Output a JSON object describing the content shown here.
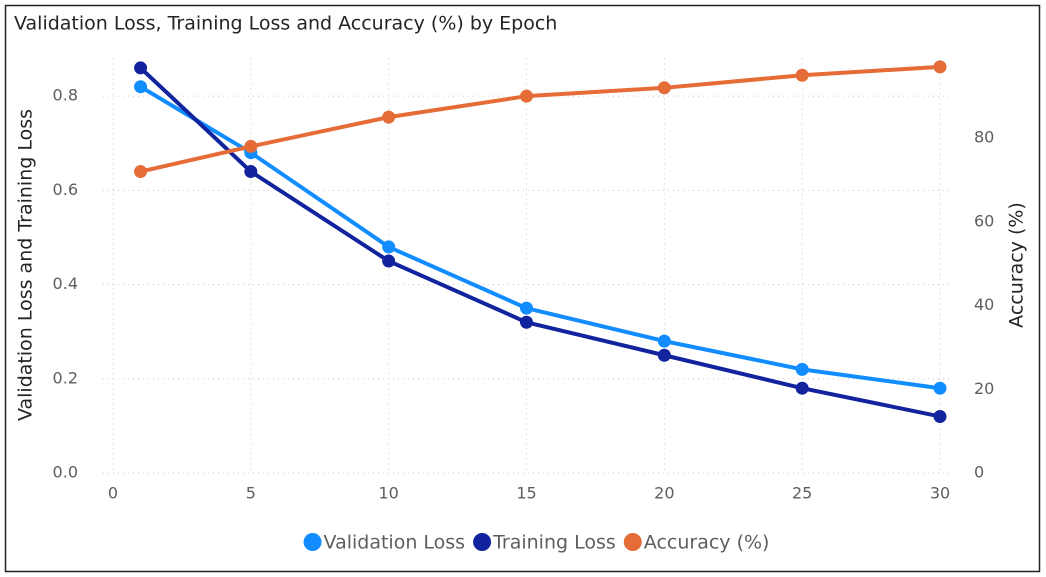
{
  "chart_data": {
    "type": "line",
    "title": "Validation Loss, Training Loss and Accuracy (%) by Epoch",
    "ylabel": "Validation Loss and Training Loss",
    "y2label": "Accuracy (%)",
    "x": [
      1,
      5,
      10,
      15,
      20,
      25,
      30
    ],
    "xlim": [
      0,
      30
    ],
    "xticks": [
      0,
      5,
      10,
      15,
      20,
      25,
      30
    ],
    "ylim": [
      0,
      0.88
    ],
    "yticks": [
      {
        "value": 0,
        "label": "0.0"
      },
      0.2,
      0.4,
      0.6,
      0.8
    ],
    "y2lim": [
      0,
      99
    ],
    "y2ticks": [
      0,
      20,
      40,
      60,
      80
    ],
    "grid": true,
    "legend": "bottom",
    "series": [
      {
        "name": "Validation Loss",
        "color": "#118dff",
        "values": [
          0.82,
          0.68,
          0.48,
          0.35,
          0.28,
          0.22,
          0.18
        ]
      },
      {
        "name": "Training Loss",
        "color": "#12239e",
        "values": [
          0.86,
          0.64,
          0.45,
          0.32,
          0.25,
          0.18,
          0.12
        ]
      },
      {
        "name": "Accuracy (%)",
        "color": "#e66c37",
        "axis": "y2",
        "values": [
          72,
          78,
          85,
          90,
          92,
          95,
          97
        ]
      }
    ]
  }
}
